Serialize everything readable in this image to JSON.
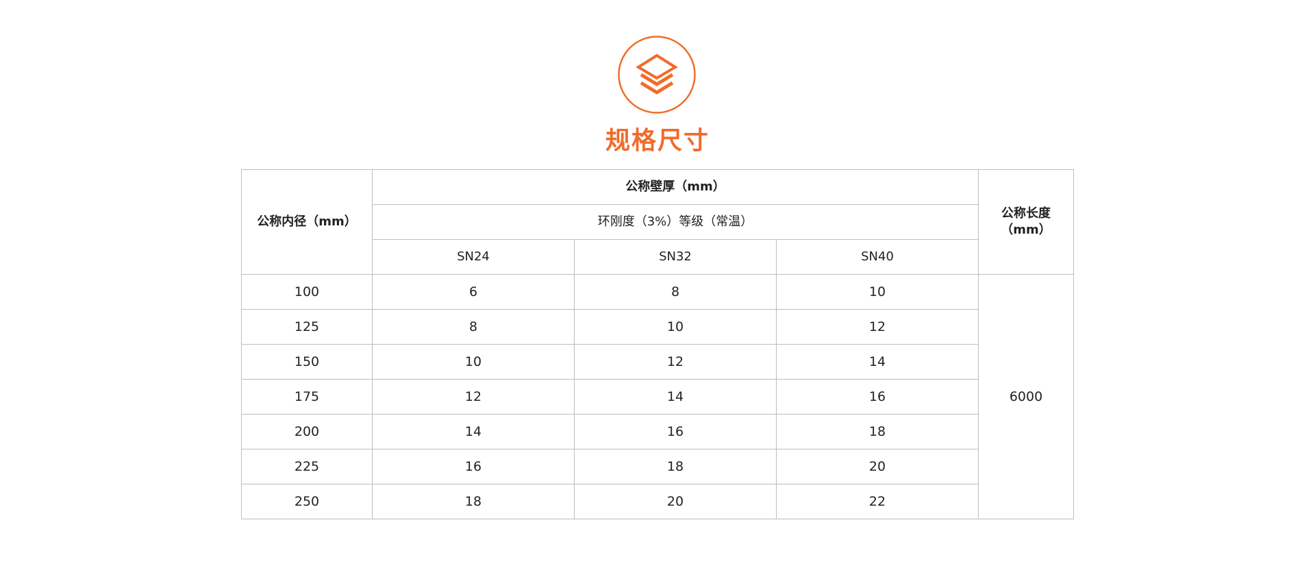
{
  "section": {
    "title": "规格尺寸",
    "icon": "layers-icon",
    "accent_color": "#f26b2a"
  },
  "table": {
    "header": {
      "inner_diameter": "公称内径（mm）",
      "wall_thickness": "公称壁厚（mm）",
      "stiffness_grade": "环刚度（3%）等级（常温）",
      "grades": [
        "SN24",
        "SN32",
        "SN40"
      ],
      "length_line1": "公称长度",
      "length_line2": "（mm）"
    },
    "rows": [
      {
        "diameter": "100",
        "values": [
          "6",
          "8",
          "10"
        ]
      },
      {
        "diameter": "125",
        "values": [
          "8",
          "10",
          "12"
        ]
      },
      {
        "diameter": "150",
        "values": [
          "10",
          "12",
          "14"
        ]
      },
      {
        "diameter": "175",
        "values": [
          "12",
          "14",
          "16"
        ]
      },
      {
        "diameter": "200",
        "values": [
          "14",
          "16",
          "18"
        ]
      },
      {
        "diameter": "225",
        "values": [
          "16",
          "18",
          "20"
        ]
      },
      {
        "diameter": "250",
        "values": [
          "18",
          "20",
          "22"
        ]
      }
    ],
    "length": "6000"
  }
}
